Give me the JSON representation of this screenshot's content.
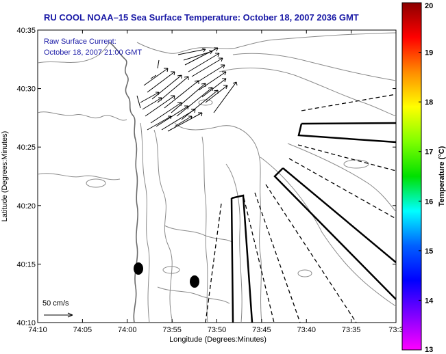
{
  "title": "RU COOL  NOAA–15  Sea Surface Temperature:  October 18, 2007 2036 GMT",
  "current_note": {
    "line1": "Raw Surface Current:",
    "line2": "October 18, 2007 21:00 GMT"
  },
  "scale_label": "50 cm/s",
  "x_axis": {
    "label": "Longitude (Degrees:Minutes)",
    "ticks": [
      "74:10",
      "74:05",
      "74:00",
      "73:55",
      "73:50",
      "73:45",
      "73:40",
      "73:35",
      "73:3"
    ]
  },
  "y_axis": {
    "label": "Latitude (Degrees:Minutes)",
    "ticks": [
      "40:35",
      "40:30",
      "40:25",
      "40:20",
      "40:15",
      "40:10"
    ]
  },
  "colorbar": {
    "label": "Temperature (°C)",
    "ticks": [
      "20",
      "19",
      "18",
      "17",
      "16",
      "15",
      "14",
      "13"
    ],
    "colors": [
      "#8b0000",
      "#ff0000",
      "#ff8c00",
      "#ffff00",
      "#80ff00",
      "#00e000",
      "#00ffff",
      "#0060ff",
      "#0000ff",
      "#8000ff",
      "#ff00ff"
    ]
  },
  "colors": {
    "title": "#1a1aa6",
    "contour": "#8a8a8a",
    "frame": "#000000"
  }
}
